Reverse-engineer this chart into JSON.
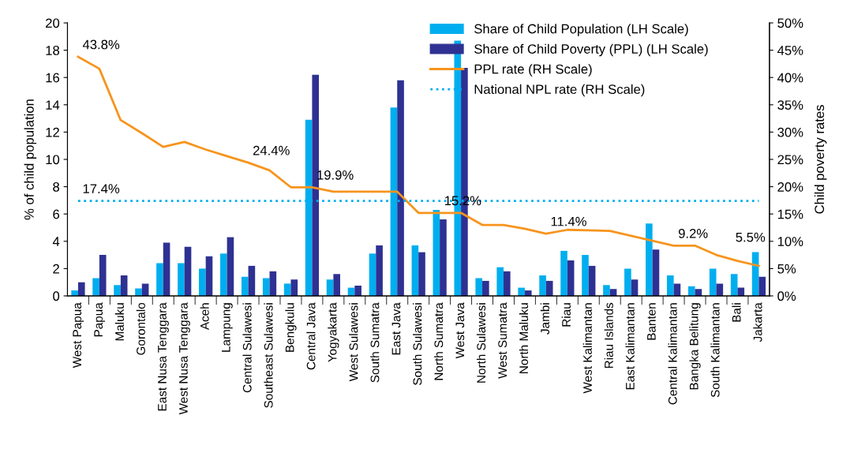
{
  "chart_data": {
    "type": "bar",
    "ylabel": "% of child population",
    "y2label": "Child poverty rates",
    "categories": [
      "West Papua",
      "Papua",
      "Maluku",
      "Gorontalo",
      "East Nusa Tenggara",
      "West Nusa Tenggara",
      "Aceh",
      "Lampung",
      "Central Sulawesi",
      "Southeast Sulawesi",
      "Bengkulu",
      "Central Java",
      "Yogyakarta",
      "West Sulawesi",
      "South Sumatra",
      "East Java",
      "South Sulawesi",
      "North Sumatra",
      "West Java",
      "North Sulawesi",
      "West Sumatra",
      "North Maluku",
      "Jambi",
      "Riau",
      "West Kalimantan",
      "Riau Islands",
      "East Kalimantan",
      "Banten",
      "Central Kalimantan",
      "Bangka Belitung",
      "South Kalimantan",
      "Bali",
      "Jakarta"
    ],
    "series": [
      {
        "name": "Share of Child Population (LH Scale)",
        "color": "#00aeef",
        "values": [
          0.4,
          1.3,
          0.8,
          0.55,
          2.4,
          2.4,
          2.0,
          3.1,
          1.4,
          1.3,
          0.9,
          12.9,
          1.2,
          0.6,
          3.1,
          13.8,
          3.7,
          6.3,
          18.7,
          1.3,
          2.1,
          0.6,
          1.5,
          3.3,
          3.0,
          0.8,
          2.0,
          5.3,
          1.5,
          0.7,
          2.0,
          1.6,
          3.2
        ]
      },
      {
        "name": "Share of Child Poverty (PPL) (LH Scale)",
        "color": "#2e3192",
        "values": [
          1.0,
          3.0,
          1.5,
          0.9,
          3.9,
          3.6,
          2.9,
          4.3,
          2.2,
          1.8,
          1.2,
          16.2,
          1.6,
          0.75,
          3.7,
          15.8,
          3.2,
          5.6,
          16.7,
          1.1,
          1.8,
          0.4,
          1.1,
          2.6,
          2.2,
          0.5,
          1.2,
          3.4,
          0.9,
          0.5,
          0.9,
          0.6,
          1.4
        ]
      },
      {
        "name": "PPL rate (RH Scale)",
        "type": "line",
        "axis": "y2",
        "color": "#f7941d",
        "line_style": "solid",
        "values": [
          43.8,
          41.6,
          32.2,
          29.8,
          27.3,
          28.2,
          26.8,
          25.6,
          24.4,
          23.0,
          19.9,
          19.9,
          19.1,
          19.1,
          19.1,
          19.1,
          15.2,
          15.2,
          15.2,
          13.0,
          13.0,
          12.3,
          11.4,
          12.1,
          12.0,
          11.9,
          11.0,
          10.1,
          9.2,
          9.2,
          7.5,
          6.4,
          5.5
        ],
        "value_labels": [
          "43.8%",
          null,
          null,
          null,
          null,
          null,
          null,
          null,
          "24.4%",
          null,
          null,
          "19.9%",
          null,
          null,
          null,
          null,
          null,
          "15.2%",
          null,
          null,
          null,
          null,
          "11.4%",
          null,
          null,
          null,
          null,
          null,
          "9.2%",
          null,
          null,
          null,
          "5.5%"
        ]
      },
      {
        "name": "National NPL rate (RH Scale)",
        "type": "line",
        "axis": "y2",
        "color": "#00aeef",
        "line_style": "dotted",
        "values": [
          17.4,
          17.4,
          17.4,
          17.4,
          17.4,
          17.4,
          17.4,
          17.4,
          17.4,
          17.4,
          17.4,
          17.4,
          17.4,
          17.4,
          17.4,
          17.4,
          17.4,
          17.4,
          17.4,
          17.4,
          17.4,
          17.4,
          17.4,
          17.4,
          17.4,
          17.4,
          17.4,
          17.4,
          17.4,
          17.4,
          17.4,
          17.4,
          17.4
        ],
        "value_labels": [
          "17.4%",
          null,
          null,
          null,
          null,
          null,
          null,
          null,
          null,
          null,
          null,
          null,
          null,
          null,
          null,
          null,
          null,
          null,
          null,
          null,
          null,
          null,
          null,
          null,
          null,
          null,
          null,
          null,
          null,
          null,
          null,
          null,
          null
        ]
      }
    ],
    "ylim": [
      0,
      20
    ],
    "yticks": [
      0,
      2,
      4,
      6,
      8,
      10,
      12,
      14,
      16,
      18,
      20
    ],
    "y2lim": [
      0,
      50
    ],
    "y2ticks": [
      {
        "value": 0,
        "label": "0%"
      },
      {
        "value": 5,
        "label": "5%"
      },
      {
        "value": 10,
        "label": "10%"
      },
      {
        "value": 15,
        "label": "15%"
      },
      {
        "value": 20,
        "label": "20%"
      },
      {
        "value": 25,
        "label": "25%"
      },
      {
        "value": 30,
        "label": "30%"
      },
      {
        "value": 35,
        "label": "35%"
      },
      {
        "value": 40,
        "label": "40%"
      },
      {
        "value": 45,
        "label": "45%"
      },
      {
        "value": 50,
        "label": "50%"
      }
    ],
    "legend": "top right",
    "grid": false,
    "marker": "none"
  }
}
